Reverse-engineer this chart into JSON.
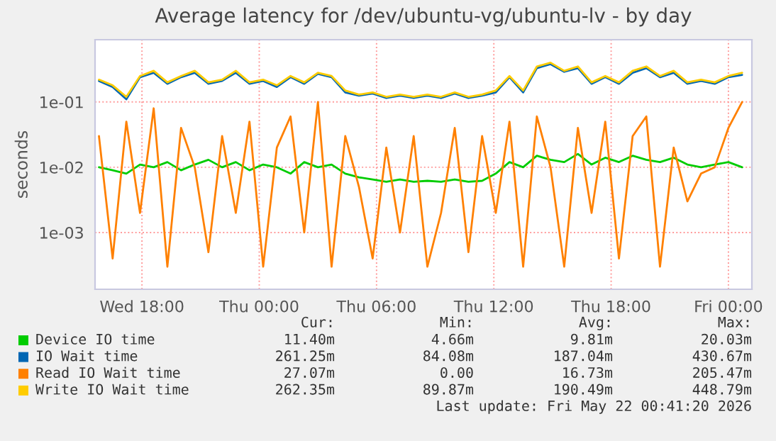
{
  "chart_data": {
    "type": "line",
    "title": "Average latency for /dev/ubuntu-vg/ubuntu-lv - by day",
    "ylabel": "seconds",
    "log": "y",
    "xlim": [
      "2026-05-20T15:36",
      "2026-05-22T01:12"
    ],
    "xticks": [
      {
        "value": "2026-05-20T18:00",
        "label": "Wed 18:00"
      },
      {
        "value": "2026-05-21T00:00",
        "label": "Thu 00:00"
      },
      {
        "value": "2026-05-21T06:00",
        "label": "Thu 06:00"
      },
      {
        "value": "2026-05-21T12:00",
        "label": "Thu 12:00"
      },
      {
        "value": "2026-05-21T18:00",
        "label": "Thu 18:00"
      },
      {
        "value": "2026-05-22T00:00",
        "label": "Fri 00:00"
      }
    ],
    "ylim": [
      0.000135,
      0.9
    ],
    "yticks": [
      {
        "value": 0.001,
        "label": "1e-03"
      },
      {
        "value": 0.01,
        "label": "1e-02"
      },
      {
        "value": 0.1,
        "label": "1e-01"
      }
    ],
    "grid": true,
    "legend": "bottom",
    "marker": "none",
    "line_style": "solid",
    "x": [
      "2026-05-20T15:48",
      "2026-05-20T16:30",
      "2026-05-20T17:12",
      "2026-05-20T17:54",
      "2026-05-20T18:36",
      "2026-05-20T19:18",
      "2026-05-20T20:00",
      "2026-05-20T20:42",
      "2026-05-20T21:24",
      "2026-05-20T22:06",
      "2026-05-20T22:48",
      "2026-05-20T23:30",
      "2026-05-21T00:12",
      "2026-05-21T00:54",
      "2026-05-21T01:36",
      "2026-05-21T02:18",
      "2026-05-21T03:00",
      "2026-05-21T03:42",
      "2026-05-21T04:24",
      "2026-05-21T05:06",
      "2026-05-21T05:48",
      "2026-05-21T06:30",
      "2026-05-21T07:12",
      "2026-05-21T07:54",
      "2026-05-21T08:36",
      "2026-05-21T09:18",
      "2026-05-21T10:00",
      "2026-05-21T10:42",
      "2026-05-21T11:24",
      "2026-05-21T12:06",
      "2026-05-21T12:48",
      "2026-05-21T13:30",
      "2026-05-21T14:12",
      "2026-05-21T14:54",
      "2026-05-21T15:36",
      "2026-05-21T16:18",
      "2026-05-21T17:00",
      "2026-05-21T17:42",
      "2026-05-21T18:24",
      "2026-05-21T19:06",
      "2026-05-21T19:48",
      "2026-05-21T20:30",
      "2026-05-21T21:12",
      "2026-05-21T21:54",
      "2026-05-21T22:36",
      "2026-05-21T23:18",
      "2026-05-22T00:00",
      "2026-05-22T00:42"
    ],
    "series": [
      {
        "name": "Device IO time",
        "color": "#00cc00",
        "values": [
          0.01,
          0.009,
          0.008,
          0.011,
          0.01,
          0.012,
          0.009,
          0.011,
          0.013,
          0.01,
          0.012,
          0.009,
          0.011,
          0.01,
          0.008,
          0.012,
          0.01,
          0.011,
          0.008,
          0.007,
          0.0065,
          0.006,
          0.0065,
          0.006,
          0.0062,
          0.006,
          0.0065,
          0.006,
          0.0062,
          0.008,
          0.012,
          0.01,
          0.015,
          0.013,
          0.012,
          0.016,
          0.011,
          0.014,
          0.012,
          0.015,
          0.013,
          0.012,
          0.014,
          0.011,
          0.01,
          0.011,
          0.012,
          0.01
        ]
      },
      {
        "name": "IO Wait time",
        "color": "#0066b3",
        "values": [
          0.21,
          0.17,
          0.11,
          0.24,
          0.28,
          0.19,
          0.24,
          0.28,
          0.19,
          0.21,
          0.28,
          0.19,
          0.21,
          0.17,
          0.24,
          0.19,
          0.27,
          0.24,
          0.14,
          0.125,
          0.135,
          0.115,
          0.125,
          0.115,
          0.125,
          0.115,
          0.135,
          0.115,
          0.125,
          0.14,
          0.24,
          0.14,
          0.33,
          0.38,
          0.29,
          0.33,
          0.19,
          0.24,
          0.19,
          0.28,
          0.33,
          0.24,
          0.28,
          0.19,
          0.21,
          0.19,
          0.24,
          0.26
        ]
      },
      {
        "name": "Read IO Wait time",
        "color": "#ff8000",
        "values": [
          0.03,
          0.0004,
          0.05,
          0.002,
          0.08,
          0.0003,
          0.04,
          0.01,
          0.0005,
          0.03,
          0.002,
          0.05,
          0.0003,
          0.02,
          0.06,
          0.001,
          0.1,
          0.0003,
          0.03,
          0.005,
          0.0004,
          0.02,
          0.001,
          0.03,
          0.0003,
          0.002,
          0.04,
          0.0005,
          0.03,
          0.002,
          0.05,
          0.0003,
          0.06,
          0.01,
          0.0003,
          0.04,
          0.002,
          0.05,
          0.0004,
          0.03,
          0.06,
          0.0003,
          0.02,
          0.003,
          0.008,
          0.01,
          0.04,
          0.1
        ]
      },
      {
        "name": "Write IO Wait time",
        "color": "#ffcc00",
        "values": [
          0.22,
          0.18,
          0.12,
          0.25,
          0.3,
          0.2,
          0.25,
          0.3,
          0.2,
          0.22,
          0.3,
          0.2,
          0.22,
          0.18,
          0.25,
          0.2,
          0.28,
          0.25,
          0.15,
          0.13,
          0.14,
          0.12,
          0.13,
          0.12,
          0.13,
          0.12,
          0.14,
          0.12,
          0.13,
          0.15,
          0.25,
          0.15,
          0.35,
          0.4,
          0.3,
          0.35,
          0.2,
          0.25,
          0.2,
          0.3,
          0.35,
          0.25,
          0.3,
          0.2,
          0.22,
          0.2,
          0.25,
          0.28
        ]
      }
    ],
    "annotations": [
      "Cur:",
      "Min:",
      "Avg:",
      "Max:",
      "11.40m",
      "4.66m",
      "9.81m",
      "20.03m",
      "261.25m",
      "84.08m",
      "187.04m",
      "430.67m",
      "27.07m",
      "0.00",
      "16.73m",
      "205.47m",
      "262.35m",
      "89.87m",
      "190.49m",
      "448.79m",
      "Last update: Fri May 22 00:41:20 2026"
    ]
  }
}
